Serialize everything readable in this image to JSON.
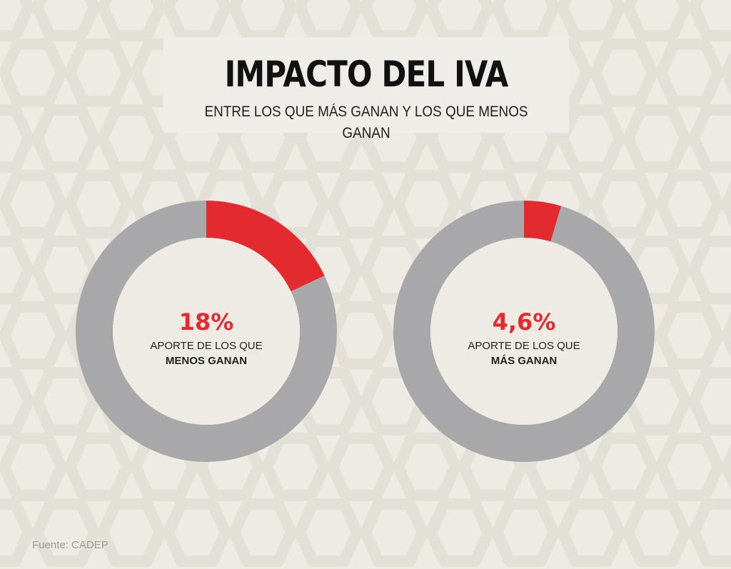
{
  "header": {
    "title": "IMPACTO DEL IVA",
    "subtitle": "ENTRE LOS QUE MÁS GANAN Y LOS QUE MENOS GANAN"
  },
  "colors": {
    "accent": "#e32b2f",
    "remainder": "#a8a8ab",
    "background": "#edebe3",
    "pattern": "#e2e0d7"
  },
  "chart_data": [
    {
      "type": "pie",
      "labels": [
        "APORTE DE LOS QUE",
        "MENOS GANAN"
      ],
      "value_label": "18%",
      "values": [
        18,
        82
      ],
      "colors": [
        "#e32b2f",
        "#a8a8ab"
      ]
    },
    {
      "type": "pie",
      "labels": [
        "APORTE DE LOS QUE",
        "MÁS GANAN"
      ],
      "value_label": "4,6%",
      "values": [
        4.6,
        95.4
      ],
      "colors": [
        "#e32b2f",
        "#a8a8ab"
      ]
    }
  ],
  "source": "Fuente: CADEP"
}
